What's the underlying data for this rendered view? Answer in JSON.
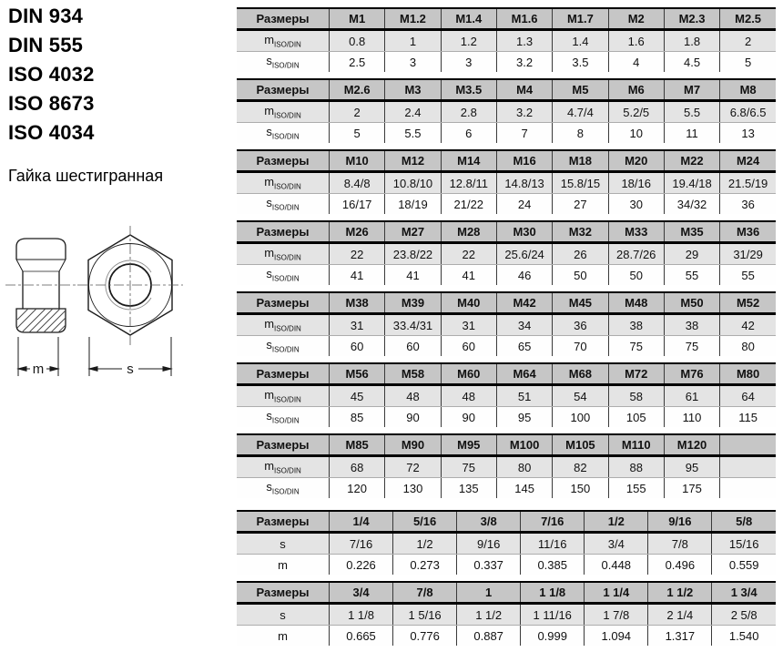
{
  "standards": [
    "DIN 934",
    "DIN 555",
    "ISO 4032",
    "ISO 8673",
    "ISO 4034"
  ],
  "product_name": "Гайка шестигранная",
  "drawing": {
    "m_label": "m",
    "s_label": "s"
  },
  "colors": {
    "header_bg": "#c6c6c6",
    "row1_bg": "#e4e4e4",
    "row2_bg": "#ffffff",
    "border": "#000000"
  },
  "tables": [
    {
      "header_label": "Размеры",
      "columns": [
        "M1",
        "M1.2",
        "M1.4",
        "M1.6",
        "M1.7",
        "M2",
        "M2.3",
        "M2.5"
      ],
      "rows": [
        {
          "label_base": "m",
          "label_sub": "ISO/DIN",
          "values": [
            "0.8",
            "1",
            "1.2",
            "1.3",
            "1.4",
            "1.6",
            "1.8",
            "2"
          ]
        },
        {
          "label_base": "s",
          "label_sub": "ISO/DIN",
          "values": [
            "2.5",
            "3",
            "3",
            "3.2",
            "3.5",
            "4",
            "4.5",
            "5"
          ]
        }
      ]
    },
    {
      "header_label": "Размеры",
      "columns": [
        "M2.6",
        "M3",
        "M3.5",
        "M4",
        "M5",
        "M6",
        "M7",
        "M8"
      ],
      "rows": [
        {
          "label_base": "m",
          "label_sub": "ISO/DIN",
          "values": [
            "2",
            "2.4",
            "2.8",
            "3.2",
            "4.7/4",
            "5.2/5",
            "5.5",
            "6.8/6.5"
          ]
        },
        {
          "label_base": "s",
          "label_sub": "ISO/DIN",
          "values": [
            "5",
            "5.5",
            "6",
            "7",
            "8",
            "10",
            "11",
            "13"
          ]
        }
      ]
    },
    {
      "header_label": "Размеры",
      "columns": [
        "M10",
        "M12",
        "M14",
        "M16",
        "M18",
        "M20",
        "M22",
        "M24"
      ],
      "rows": [
        {
          "label_base": "m",
          "label_sub": "ISO/DIN",
          "values": [
            "8.4/8",
            "10.8/10",
            "12.8/11",
            "14.8/13",
            "15.8/15",
            "18/16",
            "19.4/18",
            "21.5/19"
          ]
        },
        {
          "label_base": "s",
          "label_sub": "ISO/DIN",
          "values": [
            "16/17",
            "18/19",
            "21/22",
            "24",
            "27",
            "30",
            "34/32",
            "36"
          ]
        }
      ]
    },
    {
      "header_label": "Размеры",
      "columns": [
        "M26",
        "M27",
        "M28",
        "M30",
        "M32",
        "M33",
        "M35",
        "M36"
      ],
      "rows": [
        {
          "label_base": "m",
          "label_sub": "ISO/DIN",
          "values": [
            "22",
            "23.8/22",
            "22",
            "25.6/24",
            "26",
            "28.7/26",
            "29",
            "31/29"
          ]
        },
        {
          "label_base": "s",
          "label_sub": "ISO/DIN",
          "values": [
            "41",
            "41",
            "41",
            "46",
            "50",
            "50",
            "55",
            "55"
          ]
        }
      ]
    },
    {
      "header_label": "Размеры",
      "columns": [
        "M38",
        "M39",
        "M40",
        "M42",
        "M45",
        "M48",
        "M50",
        "M52"
      ],
      "rows": [
        {
          "label_base": "m",
          "label_sub": "ISO/DIN",
          "values": [
            "31",
            "33.4/31",
            "31",
            "34",
            "36",
            "38",
            "38",
            "42"
          ]
        },
        {
          "label_base": "s",
          "label_sub": "ISO/DIN",
          "values": [
            "60",
            "60",
            "60",
            "65",
            "70",
            "75",
            "75",
            "80"
          ]
        }
      ]
    },
    {
      "header_label": "Размеры",
      "columns": [
        "M56",
        "M58",
        "M60",
        "M64",
        "M68",
        "M72",
        "M76",
        "M80"
      ],
      "rows": [
        {
          "label_base": "m",
          "label_sub": "ISO/DIN",
          "values": [
            "45",
            "48",
            "48",
            "51",
            "54",
            "58",
            "61",
            "64"
          ]
        },
        {
          "label_base": "s",
          "label_sub": "ISO/DIN",
          "values": [
            "85",
            "90",
            "90",
            "95",
            "100",
            "105",
            "110",
            "115"
          ]
        }
      ]
    },
    {
      "header_label": "Размеры",
      "columns": [
        "M85",
        "M90",
        "M95",
        "M100",
        "M105",
        "M110",
        "M120",
        ""
      ],
      "rows": [
        {
          "label_base": "m",
          "label_sub": "ISO/DIN",
          "values": [
            "68",
            "72",
            "75",
            "80",
            "82",
            "88",
            "95",
            ""
          ]
        },
        {
          "label_base": "s",
          "label_sub": "ISO/DIN",
          "values": [
            "120",
            "130",
            "135",
            "145",
            "150",
            "155",
            "175",
            ""
          ]
        }
      ]
    },
    {
      "header_label": "Размеры",
      "columns": [
        "1/4",
        "5/16",
        "3/8",
        "7/16",
        "1/2",
        "9/16",
        "5/8"
      ],
      "rows": [
        {
          "label_base": "s",
          "values": [
            "7/16",
            "1/2",
            "9/16",
            "11/16",
            "3/4",
            "7/8",
            "15/16"
          ]
        },
        {
          "label_base": "m",
          "values": [
            "0.226",
            "0.273",
            "0.337",
            "0.385",
            "0.448",
            "0.496",
            "0.559"
          ]
        }
      ]
    },
    {
      "header_label": "Размеры",
      "columns": [
        "3/4",
        "7/8",
        "1",
        "1 1/8",
        "1 1/4",
        "1 1/2",
        "1 3/4"
      ],
      "rows": [
        {
          "label_base": "s",
          "values": [
            "1 1/8",
            "1 5/16",
            "1 1/2",
            "1 11/16",
            "1 7/8",
            "2 1/4",
            "2 5/8"
          ]
        },
        {
          "label_base": "m",
          "values": [
            "0.665",
            "0.776",
            "0.887",
            "0.999",
            "1.094",
            "1.317",
            "1.540"
          ]
        }
      ]
    }
  ]
}
